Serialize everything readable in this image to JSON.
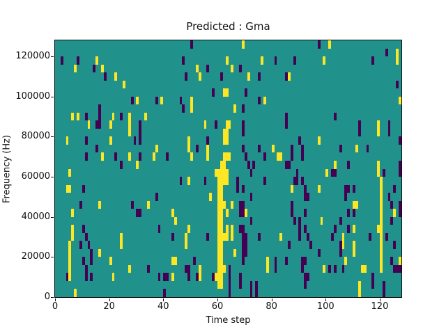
{
  "figure": {
    "title": "Predicted : Gma",
    "background": "#ffffff"
  },
  "axes": {
    "xlabel": "Time step",
    "ylabel": "Frequency (Hz)",
    "xtick_labels": [
      "0",
      "20",
      "40",
      "60",
      "80",
      "100",
      "120"
    ],
    "xtick_values": [
      0,
      20,
      40,
      60,
      80,
      100,
      120
    ],
    "ytick_labels": [
      "0",
      "20000",
      "40000",
      "60000",
      "80000",
      "100000",
      "120000"
    ],
    "ytick_values": [
      0,
      20000,
      40000,
      60000,
      80000,
      100000,
      120000
    ]
  },
  "chart_data": {
    "type": "heatmap",
    "title": "Predicted : Gma",
    "xlabel": "Time step",
    "ylabel": "Frequency (Hz)",
    "xlim": [
      0,
      128
    ],
    "ylim": [
      0,
      128000
    ],
    "grid_cols": 128,
    "grid_rows": 32,
    "row_origin": "top",
    "row_band_hz": 4000,
    "colors": {
      "low": "#440154",
      "mid": "#21918c",
      "high": "#fde725"
    },
    "background_value": "mid",
    "cells_high": [
      [
        69,
        0
      ],
      [
        101,
        0
      ],
      [
        126,
        1
      ],
      [
        15,
        2
      ],
      [
        63,
        2
      ],
      [
        76,
        2
      ],
      [
        99,
        2
      ],
      [
        126,
        2
      ],
      [
        7,
        3
      ],
      [
        17,
        3
      ],
      [
        52,
        3
      ],
      [
        65,
        3
      ],
      [
        22,
        4
      ],
      [
        53,
        4
      ],
      [
        71,
        4
      ],
      [
        86,
        4
      ],
      [
        25,
        5
      ],
      [
        62,
        6
      ],
      [
        63,
        6
      ],
      [
        30,
        7
      ],
      [
        39,
        7
      ],
      [
        50,
        7
      ],
      [
        77,
        7
      ],
      [
        127,
        7
      ],
      [
        50,
        8
      ],
      [
        66,
        8
      ],
      [
        6,
        9
      ],
      [
        8,
        9
      ],
      [
        21,
        9
      ],
      [
        27,
        9
      ],
      [
        33,
        9
      ],
      [
        12,
        10
      ],
      [
        20,
        10
      ],
      [
        27,
        10
      ],
      [
        55,
        10
      ],
      [
        63,
        10
      ],
      [
        64,
        10
      ],
      [
        119,
        10
      ],
      [
        27,
        11
      ],
      [
        62,
        11
      ],
      [
        63,
        11
      ],
      [
        119,
        11
      ],
      [
        4,
        12
      ],
      [
        20,
        12
      ],
      [
        49,
        12
      ],
      [
        62,
        12
      ],
      [
        63,
        12
      ],
      [
        97,
        12
      ],
      [
        37,
        13
      ],
      [
        49,
        13
      ],
      [
        56,
        13
      ],
      [
        80,
        13
      ],
      [
        111,
        13
      ],
      [
        17,
        14
      ],
      [
        27,
        14
      ],
      [
        36,
        14
      ],
      [
        50,
        14
      ],
      [
        56,
        14
      ],
      [
        62,
        14
      ],
      [
        63,
        14
      ],
      [
        64,
        14
      ],
      [
        82,
        14
      ],
      [
        83,
        14
      ],
      [
        30,
        15
      ],
      [
        61,
        15
      ],
      [
        62,
        15
      ],
      [
        103,
        15
      ],
      [
        119,
        15
      ],
      [
        5,
        16
      ],
      [
        59,
        16
      ],
      [
        60,
        16
      ],
      [
        61,
        16
      ],
      [
        62,
        16
      ],
      [
        63,
        16
      ],
      [
        100,
        16
      ],
      [
        119,
        16
      ],
      [
        49,
        17
      ],
      [
        60,
        17
      ],
      [
        61,
        17
      ],
      [
        62,
        17
      ],
      [
        63,
        17
      ],
      [
        120,
        17
      ],
      [
        4,
        18
      ],
      [
        5,
        18
      ],
      [
        60,
        18
      ],
      [
        61,
        18
      ],
      [
        87,
        18
      ],
      [
        97,
        18
      ],
      [
        120,
        18
      ],
      [
        57,
        19
      ],
      [
        60,
        19
      ],
      [
        61,
        19
      ],
      [
        120,
        19
      ],
      [
        16,
        20
      ],
      [
        34,
        20
      ],
      [
        60,
        20
      ],
      [
        61,
        20
      ],
      [
        62,
        20
      ],
      [
        65,
        20
      ],
      [
        110,
        20
      ],
      [
        111,
        20
      ],
      [
        120,
        20
      ],
      [
        6,
        21
      ],
      [
        43,
        21
      ],
      [
        60,
        21
      ],
      [
        61,
        21
      ],
      [
        63,
        21
      ],
      [
        70,
        21
      ],
      [
        120,
        21
      ],
      [
        125,
        21
      ],
      [
        44,
        22
      ],
      [
        60,
        22
      ],
      [
        61,
        22
      ],
      [
        98,
        22
      ],
      [
        120,
        22
      ],
      [
        6,
        23
      ],
      [
        49,
        23
      ],
      [
        60,
        23
      ],
      [
        61,
        23
      ],
      [
        63,
        23
      ],
      [
        65,
        23
      ],
      [
        110,
        23
      ],
      [
        119,
        23
      ],
      [
        120,
        23
      ],
      [
        6,
        24
      ],
      [
        24,
        24
      ],
      [
        48,
        24
      ],
      [
        60,
        24
      ],
      [
        61,
        24
      ],
      [
        62,
        24
      ],
      [
        63,
        24
      ],
      [
        65,
        24
      ],
      [
        83,
        24
      ],
      [
        106,
        24
      ],
      [
        120,
        24
      ],
      [
        5,
        25
      ],
      [
        24,
        25
      ],
      [
        48,
        25
      ],
      [
        60,
        25
      ],
      [
        61,
        25
      ],
      [
        106,
        25
      ],
      [
        110,
        25
      ],
      [
        120,
        25
      ],
      [
        5,
        26
      ],
      [
        16,
        26
      ],
      [
        60,
        26
      ],
      [
        61,
        26
      ],
      [
        66,
        26
      ],
      [
        110,
        26
      ],
      [
        120,
        26
      ],
      [
        5,
        27
      ],
      [
        20,
        27
      ],
      [
        43,
        27
      ],
      [
        44,
        27
      ],
      [
        60,
        27
      ],
      [
        61,
        27
      ],
      [
        78,
        27
      ],
      [
        107,
        27
      ],
      [
        120,
        27
      ],
      [
        127,
        27
      ],
      [
        5,
        28
      ],
      [
        27,
        28
      ],
      [
        53,
        28
      ],
      [
        60,
        28
      ],
      [
        61,
        28
      ],
      [
        62,
        28
      ],
      [
        78,
        28
      ],
      [
        99,
        28
      ],
      [
        113,
        28
      ],
      [
        114,
        28
      ],
      [
        120,
        28
      ],
      [
        5,
        29
      ],
      [
        21,
        29
      ],
      [
        43,
        29
      ],
      [
        53,
        29
      ],
      [
        59,
        29
      ],
      [
        60,
        29
      ],
      [
        61,
        29
      ],
      [
        60,
        30
      ],
      [
        61,
        30
      ],
      [
        112,
        30
      ],
      [
        7,
        31
      ],
      [
        112,
        31
      ]
    ],
    "cells_low": [
      [
        50,
        0
      ],
      [
        97,
        0
      ],
      [
        122,
        1
      ],
      [
        2,
        2
      ],
      [
        8,
        2
      ],
      [
        47,
        2
      ],
      [
        81,
        2
      ],
      [
        88,
        2
      ],
      [
        117,
        2
      ],
      [
        14,
        3
      ],
      [
        56,
        3
      ],
      [
        68,
        3
      ],
      [
        18,
        4
      ],
      [
        48,
        4
      ],
      [
        61,
        4
      ],
      [
        75,
        4
      ],
      [
        85,
        4
      ],
      [
        126,
        5
      ],
      [
        58,
        6
      ],
      [
        70,
        6
      ],
      [
        28,
        7
      ],
      [
        37,
        7
      ],
      [
        46,
        7
      ],
      [
        75,
        7
      ],
      [
        16,
        8
      ],
      [
        47,
        8
      ],
      [
        69,
        8
      ],
      [
        11,
        9
      ],
      [
        16,
        9
      ],
      [
        24,
        9
      ],
      [
        85,
        9
      ],
      [
        103,
        9
      ],
      [
        15,
        10
      ],
      [
        16,
        10
      ],
      [
        31,
        10
      ],
      [
        59,
        10
      ],
      [
        69,
        10
      ],
      [
        85,
        10
      ],
      [
        112,
        10
      ],
      [
        123,
        10
      ],
      [
        31,
        11
      ],
      [
        69,
        11
      ],
      [
        112,
        11
      ],
      [
        123,
        11
      ],
      [
        11,
        12
      ],
      [
        29,
        12
      ],
      [
        31,
        12
      ],
      [
        56,
        12
      ],
      [
        90,
        12
      ],
      [
        127,
        12
      ],
      [
        15,
        13
      ],
      [
        52,
        13
      ],
      [
        69,
        13
      ],
      [
        75,
        13
      ],
      [
        87,
        13
      ],
      [
        91,
        13
      ],
      [
        105,
        13
      ],
      [
        115,
        13
      ],
      [
        11,
        14
      ],
      [
        22,
        14
      ],
      [
        31,
        14
      ],
      [
        41,
        14
      ],
      [
        70,
        14
      ],
      [
        77,
        14
      ],
      [
        87,
        14
      ],
      [
        91,
        14
      ],
      [
        24,
        15
      ],
      [
        71,
        15
      ],
      [
        73,
        15
      ],
      [
        85,
        15
      ],
      [
        86,
        15
      ],
      [
        108,
        15
      ],
      [
        127,
        15
      ],
      [
        72,
        16
      ],
      [
        89,
        16
      ],
      [
        102,
        16
      ],
      [
        103,
        16
      ],
      [
        121,
        16
      ],
      [
        127,
        16
      ],
      [
        46,
        17
      ],
      [
        55,
        17
      ],
      [
        67,
        17
      ],
      [
        77,
        17
      ],
      [
        88,
        17
      ],
      [
        89,
        17
      ],
      [
        91,
        17
      ],
      [
        10,
        18
      ],
      [
        67,
        18
      ],
      [
        69,
        18
      ],
      [
        92,
        18
      ],
      [
        107,
        18
      ],
      [
        108,
        18
      ],
      [
        110,
        18
      ],
      [
        125,
        18
      ],
      [
        37,
        19
      ],
      [
        72,
        19
      ],
      [
        92,
        19
      ],
      [
        93,
        19
      ],
      [
        107,
        19
      ],
      [
        123,
        19
      ],
      [
        9,
        20
      ],
      [
        28,
        20
      ],
      [
        68,
        20
      ],
      [
        69,
        20
      ],
      [
        87,
        20
      ],
      [
        124,
        20
      ],
      [
        127,
        20
      ],
      [
        30,
        21
      ],
      [
        31,
        21
      ],
      [
        68,
        21
      ],
      [
        69,
        21
      ],
      [
        87,
        21
      ],
      [
        92,
        21
      ],
      [
        108,
        21
      ],
      [
        110,
        21
      ],
      [
        127,
        21
      ],
      [
        72,
        22
      ],
      [
        88,
        22
      ],
      [
        90,
        22
      ],
      [
        105,
        22
      ],
      [
        124,
        22
      ],
      [
        10,
        23
      ],
      [
        38,
        23
      ],
      [
        68,
        23
      ],
      [
        69,
        23
      ],
      [
        90,
        23
      ],
      [
        92,
        23
      ],
      [
        103,
        23
      ],
      [
        108,
        23
      ],
      [
        11,
        24
      ],
      [
        43,
        24
      ],
      [
        56,
        24
      ],
      [
        69,
        24
      ],
      [
        70,
        24
      ],
      [
        75,
        24
      ],
      [
        90,
        24
      ],
      [
        93,
        24
      ],
      [
        102,
        24
      ],
      [
        116,
        24
      ],
      [
        122,
        24
      ],
      [
        9,
        25
      ],
      [
        12,
        25
      ],
      [
        69,
        25
      ],
      [
        70,
        25
      ],
      [
        86,
        25
      ],
      [
        94,
        25
      ],
      [
        105,
        25
      ],
      [
        125,
        25
      ],
      [
        13,
        26
      ],
      [
        69,
        26
      ],
      [
        70,
        26
      ],
      [
        97,
        26
      ],
      [
        105,
        26
      ],
      [
        10,
        27
      ],
      [
        13,
        27
      ],
      [
        51,
        27
      ],
      [
        69,
        27
      ],
      [
        81,
        27
      ],
      [
        85,
        27
      ],
      [
        91,
        27
      ],
      [
        92,
        27
      ],
      [
        124,
        27
      ],
      [
        11,
        28
      ],
      [
        34,
        28
      ],
      [
        48,
        28
      ],
      [
        49,
        28
      ],
      [
        64,
        28
      ],
      [
        81,
        28
      ],
      [
        91,
        28
      ],
      [
        101,
        28
      ],
      [
        103,
        28
      ],
      [
        106,
        28
      ],
      [
        125,
        28
      ],
      [
        126,
        28
      ],
      [
        127,
        28
      ],
      [
        4,
        29
      ],
      [
        11,
        29
      ],
      [
        13,
        29
      ],
      [
        38,
        29
      ],
      [
        40,
        29
      ],
      [
        41,
        29
      ],
      [
        49,
        29
      ],
      [
        52,
        29
      ],
      [
        58,
        29
      ],
      [
        64,
        29
      ],
      [
        68,
        29
      ],
      [
        92,
        29
      ],
      [
        93,
        29
      ],
      [
        117,
        29
      ],
      [
        64,
        30
      ],
      [
        68,
        30
      ],
      [
        72,
        30
      ],
      [
        74,
        30
      ],
      [
        92,
        30
      ],
      [
        117,
        30
      ],
      [
        121,
        30
      ],
      [
        40,
        31
      ],
      [
        64,
        31
      ],
      [
        72,
        31
      ],
      [
        74,
        31
      ],
      [
        121,
        31
      ]
    ]
  }
}
